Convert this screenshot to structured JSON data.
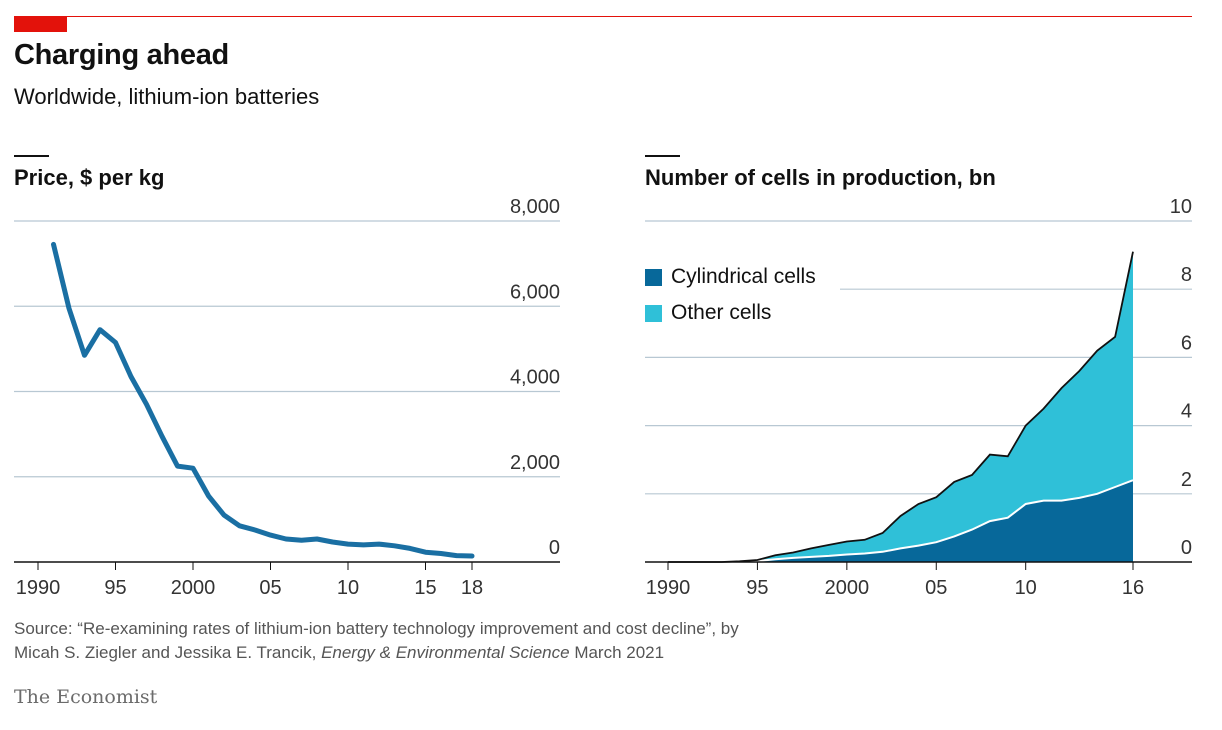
{
  "header": {
    "title": "Charging ahead",
    "subtitle": "Worldwide, lithium-ion batteries"
  },
  "colors": {
    "accent": "#e3120b",
    "price_line": "#1a6fa3",
    "cylindrical": "#07689a",
    "other": "#2fc0d8",
    "grid": "#b8c8d3"
  },
  "chart_data": [
    {
      "type": "line",
      "title": "Price, $ per kg",
      "ylim": [
        0,
        8000
      ],
      "xlim": [
        1989,
        2024
      ],
      "y_ticks": [
        0,
        2000,
        4000,
        6000,
        8000
      ],
      "y_tick_labels": [
        "0",
        "2,000",
        "4,000",
        "6,000",
        "8,000"
      ],
      "x_ticks": [
        1990,
        1995,
        2000,
        2005,
        2010,
        2015,
        2018
      ],
      "x_tick_labels": [
        "1990",
        "95",
        "2000",
        "05",
        "10",
        "15",
        "18"
      ],
      "grid": true,
      "series": [
        {
          "x": [
            1991,
            1992,
            1993,
            1994,
            1995,
            1996,
            1997,
            1998,
            1999,
            2000,
            2001,
            2002,
            2003,
            2004,
            2005,
            2006,
            2007,
            2008,
            2009,
            2010,
            2011,
            2012,
            2013,
            2014,
            2015,
            2016,
            2017,
            2018
          ],
          "y": [
            7450,
            5950,
            4850,
            5450,
            5150,
            4350,
            3700,
            2950,
            2250,
            2200,
            1550,
            1100,
            850,
            750,
            630,
            540,
            510,
            540,
            470,
            420,
            400,
            420,
            380,
            320,
            230,
            200,
            150,
            140
          ]
        }
      ]
    },
    {
      "type": "area",
      "title": "Number of cells in production, bn",
      "ylim": [
        0,
        10
      ],
      "xlim": [
        1989,
        2019
      ],
      "y_ticks": [
        0,
        2,
        4,
        6,
        8,
        10
      ],
      "y_tick_labels": [
        "0",
        "2",
        "4",
        "6",
        "8",
        "10"
      ],
      "x_ticks": [
        1990,
        1995,
        2000,
        2005,
        2010,
        2016
      ],
      "x_tick_labels": [
        "1990",
        "95",
        "2000",
        "05",
        "10",
        "16"
      ],
      "grid": true,
      "legend": "top-left",
      "stacked": true,
      "x": [
        1990,
        1991,
        1992,
        1993,
        1994,
        1995,
        1996,
        1997,
        1998,
        1999,
        2000,
        2001,
        2002,
        2003,
        2004,
        2005,
        2006,
        2007,
        2008,
        2009,
        2010,
        2011,
        2012,
        2013,
        2014,
        2015,
        2016
      ],
      "series": [
        {
          "name": "Cylindrical cells",
          "values": [
            0,
            0,
            0,
            0,
            0.01,
            0.03,
            0.08,
            0.12,
            0.15,
            0.18,
            0.22,
            0.25,
            0.3,
            0.4,
            0.48,
            0.58,
            0.75,
            0.95,
            1.2,
            1.3,
            1.7,
            1.8,
            1.8,
            1.88,
            2.0,
            2.2,
            2.4
          ]
        },
        {
          "name": "Other cells",
          "values": [
            0,
            0,
            0,
            0,
            0.01,
            0.03,
            0.12,
            0.16,
            0.25,
            0.32,
            0.38,
            0.4,
            0.55,
            0.95,
            1.22,
            1.32,
            1.6,
            1.6,
            1.95,
            1.8,
            2.3,
            2.7,
            3.3,
            3.72,
            4.2,
            4.4,
            6.7
          ]
        }
      ]
    }
  ],
  "footer": {
    "source_prefix": "Source: “Re-examining rates of lithium-ion battery technology improvement and cost decline”, by",
    "source_authors": "Micah S. Ziegler and Jessika E. Trancik, ",
    "source_journal": "Energy & Environmental Science",
    "source_date": " March 2021",
    "logo": "The Economist"
  }
}
